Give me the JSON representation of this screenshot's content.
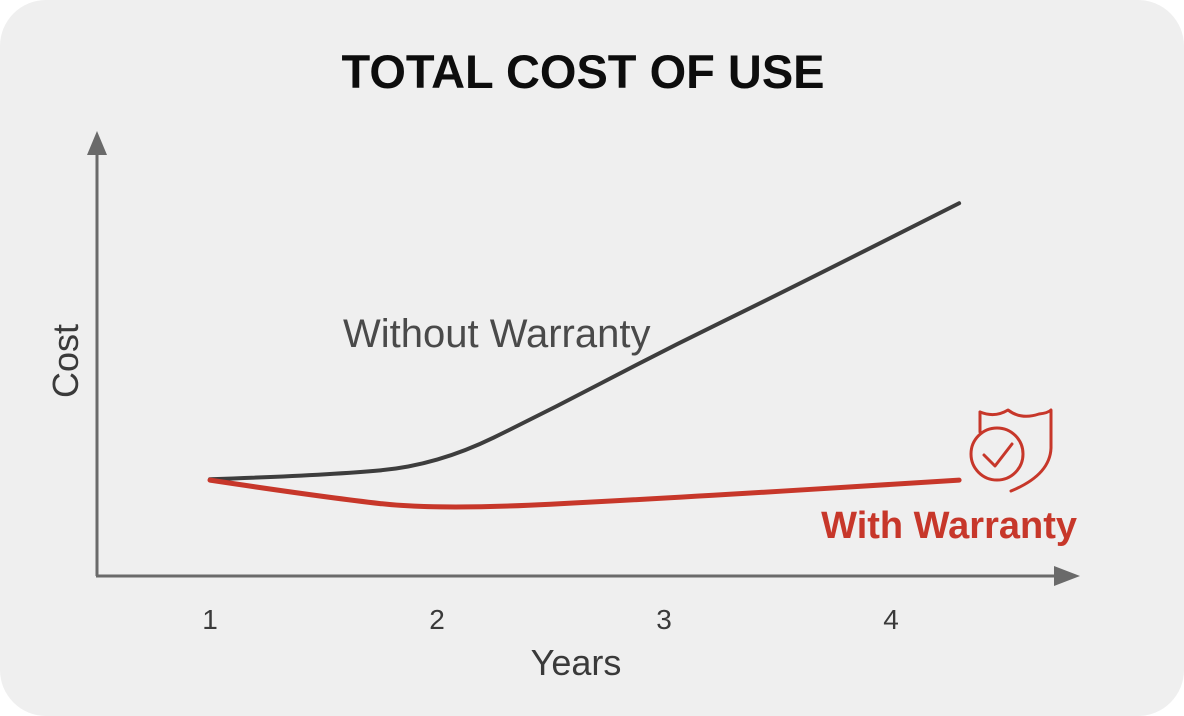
{
  "chart_data": {
    "type": "line",
    "title": "TOTAL COST OF USE",
    "xlabel": "Years",
    "ylabel": "Cost",
    "x_ticks": [
      "1",
      "2",
      "3",
      "4"
    ],
    "xlim": [
      0.5,
      4.8
    ],
    "ylim": [
      0,
      10
    ],
    "grid": false,
    "series": [
      {
        "name": "Without Warranty",
        "color": "#3d3d3d",
        "points": [
          [
            1.0,
            2.27
          ],
          [
            1.5,
            2.36
          ],
          [
            2.0,
            2.6
          ],
          [
            2.5,
            3.9
          ],
          [
            3.0,
            5.3
          ],
          [
            3.5,
            6.6
          ],
          [
            4.3,
            8.75
          ]
        ]
      },
      {
        "name": "With Warranty",
        "color": "#c7372a",
        "points": [
          [
            1.0,
            2.25
          ],
          [
            1.5,
            1.85
          ],
          [
            2.0,
            1.55
          ],
          [
            3.0,
            1.82
          ],
          [
            4.3,
            2.25
          ]
        ]
      }
    ],
    "annotation_icon": "shield-check-icon"
  }
}
